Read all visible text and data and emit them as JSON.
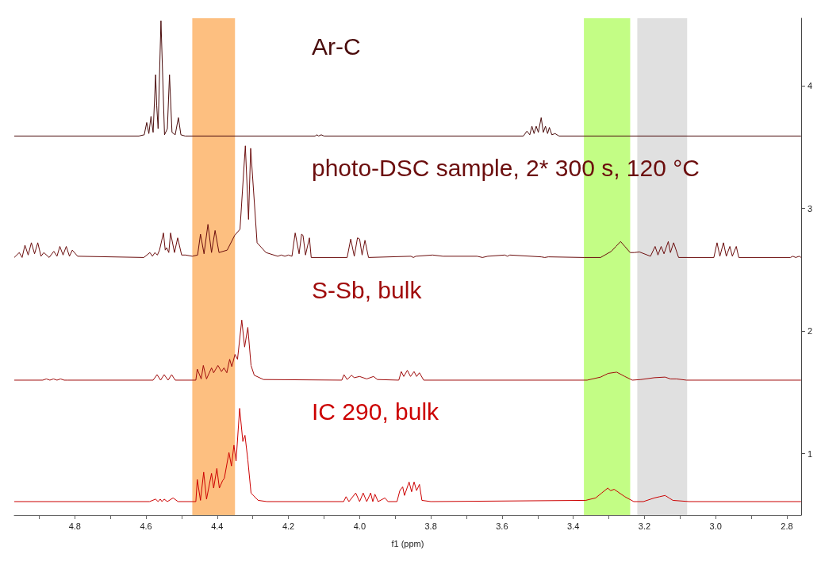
{
  "chart_data": {
    "type": "line",
    "xlabel": "f1 (ppm)",
    "xlim": [
      4.97,
      2.76
    ],
    "ylim": [
      0.5,
      4.55
    ],
    "xticks": [
      {
        "value": 4.9,
        "label": null
      },
      {
        "value": 4.8,
        "label": "4.8"
      },
      {
        "value": 4.7,
        "label": null
      },
      {
        "value": 4.6,
        "label": "4.6"
      },
      {
        "value": 4.5,
        "label": null
      },
      {
        "value": 4.4,
        "label": "4.4"
      },
      {
        "value": 4.3,
        "label": null
      },
      {
        "value": 4.2,
        "label": "4.2"
      },
      {
        "value": 4.1,
        "label": null
      },
      {
        "value": 4,
        "label": "4.0"
      },
      {
        "value": 3.9,
        "label": null
      },
      {
        "value": 3.8,
        "label": "3.8"
      },
      {
        "value": 3.7,
        "label": null
      },
      {
        "value": 3.6,
        "label": "3.6"
      },
      {
        "value": 3.5,
        "label": null
      },
      {
        "value": 3.4,
        "label": "3.4"
      },
      {
        "value": 3.3,
        "label": null
      },
      {
        "value": 3.2,
        "label": "3.2"
      },
      {
        "value": 3.1,
        "label": null
      },
      {
        "value": 3,
        "label": "3.0"
      },
      {
        "value": 2.9,
        "label": null
      },
      {
        "value": 2.8,
        "label": "2.8"
      }
    ],
    "yticks": [
      1,
      2,
      3,
      4
    ],
    "grid": false,
    "legend": false,
    "marker": "none",
    "line_style": "solid",
    "bands": [
      {
        "axis": "x",
        "from": 4.47,
        "to": 4.35,
        "color": "#fdbf80"
      },
      {
        "axis": "x",
        "from": 3.37,
        "to": 3.24,
        "color": "#c3fd85"
      },
      {
        "axis": "x",
        "from": 3.22,
        "to": 3.08,
        "color": "#e0e0e0"
      }
    ],
    "series": [
      {
        "name": "Ar-C",
        "color": "#4a0c0c",
        "x": [
          4.97,
          4.62,
          4.605,
          4.598,
          4.592,
          4.586,
          4.58,
          4.573,
          4.57,
          4.566,
          4.558,
          4.548,
          4.54,
          4.534,
          4.527,
          4.518,
          4.509,
          4.502,
          4.49,
          4.125,
          4.12,
          4.115,
          4.108,
          4.1,
          3.54,
          3.53,
          3.522,
          3.516,
          3.51,
          3.504,
          3.498,
          3.49,
          3.484,
          3.478,
          3.472,
          3.467,
          3.46,
          3.451,
          3.44,
          2.76
        ],
        "values": [
          3.59,
          3.59,
          3.6,
          3.7,
          3.61,
          3.75,
          3.62,
          4.09,
          3.84,
          3.65,
          4.53,
          3.6,
          3.65,
          4.09,
          3.62,
          3.6,
          3.74,
          3.6,
          3.59,
          3.59,
          3.6,
          3.59,
          3.6,
          3.59,
          3.59,
          3.63,
          3.6,
          3.67,
          3.61,
          3.67,
          3.62,
          3.74,
          3.62,
          3.67,
          3.61,
          3.66,
          3.6,
          3.61,
          3.59,
          3.59
        ]
      },
      {
        "name": "photo-DSC sample, 2* 300 s, 120 °C",
        "color": "#6b0d0d",
        "x": [
          4.97,
          4.956,
          4.948,
          4.94,
          4.931,
          4.922,
          4.913,
          4.904,
          4.895,
          4.887,
          4.872,
          4.859,
          4.85,
          4.842,
          4.833,
          4.824,
          4.815,
          4.807,
          4.792,
          4.606,
          4.589,
          4.582,
          4.575,
          4.568,
          4.562,
          4.551,
          4.546,
          4.542,
          4.536,
          4.531,
          4.52,
          4.511,
          4.5,
          4.489,
          4.47,
          4.455,
          4.447,
          4.437,
          4.426,
          4.416,
          4.406,
          4.395,
          4.372,
          4.351,
          4.336,
          4.321,
          4.312,
          4.306,
          4.288,
          4.263,
          4.23,
          4.22,
          4.21,
          4.2,
          4.19,
          4.181,
          4.17,
          4.163,
          4.159,
          4.152,
          4.141,
          4.136,
          4.035,
          4.025,
          4.015,
          4.006,
          4.0,
          3.993,
          3.985,
          3.975,
          3.856,
          3.849,
          3.842,
          3.795,
          3.766,
          3.67,
          3.655,
          3.64,
          3.592,
          3.585,
          3.578,
          3.49,
          3.48,
          3.47,
          3.37,
          3.323,
          3.293,
          3.28,
          3.267,
          3.255,
          3.24,
          3.229,
          3.214,
          3.183,
          3.17,
          3.162,
          3.153,
          3.145,
          3.133,
          3.127,
          3.118,
          3.104,
          3.005,
          2.996,
          2.988,
          2.978,
          2.97,
          2.96,
          2.953,
          2.942,
          2.935,
          2.79,
          2.783,
          2.775,
          2.765,
          2.76
        ],
        "values": [
          2.6,
          2.64,
          2.6,
          2.7,
          2.62,
          2.72,
          2.63,
          2.72,
          2.61,
          2.64,
          2.6,
          2.65,
          2.61,
          2.69,
          2.62,
          2.69,
          2.61,
          2.66,
          2.61,
          2.6,
          2.64,
          2.61,
          2.64,
          2.62,
          2.66,
          2.8,
          2.66,
          2.68,
          2.64,
          2.8,
          2.64,
          2.76,
          2.62,
          2.62,
          2.61,
          2.62,
          2.79,
          2.63,
          2.87,
          2.64,
          2.82,
          2.64,
          2.66,
          2.78,
          2.83,
          3.51,
          2.91,
          3.49,
          2.72,
          2.64,
          2.61,
          2.62,
          2.61,
          2.62,
          2.61,
          2.8,
          2.63,
          2.79,
          2.78,
          2.62,
          2.76,
          2.6,
          2.6,
          2.75,
          2.61,
          2.76,
          2.75,
          2.62,
          2.74,
          2.6,
          2.61,
          2.6,
          2.61,
          2.62,
          2.61,
          2.61,
          2.6,
          2.61,
          2.62,
          2.61,
          2.62,
          2.605,
          2.6,
          2.605,
          2.6,
          2.6,
          2.65,
          2.69,
          2.73,
          2.69,
          2.64,
          2.64,
          2.645,
          2.61,
          2.69,
          2.62,
          2.69,
          2.63,
          2.73,
          2.64,
          2.72,
          2.6,
          2.6,
          2.72,
          2.61,
          2.72,
          2.61,
          2.69,
          2.61,
          2.69,
          2.6,
          2.6,
          2.61,
          2.6,
          2.61,
          2.6
        ]
      },
      {
        "name": "S-Sb, bulk",
        "color": "#a00c0c",
        "x": [
          4.97,
          4.89,
          4.88,
          4.87,
          4.86,
          4.85,
          4.84,
          4.83,
          4.82,
          4.58,
          4.569,
          4.559,
          4.549,
          4.538,
          4.528,
          4.518,
          4.46,
          4.456,
          4.445,
          4.439,
          4.43,
          4.416,
          4.41,
          4.398,
          4.388,
          4.381,
          4.373,
          4.365,
          4.359,
          4.35,
          4.343,
          4.331,
          4.323,
          4.314,
          4.305,
          4.296,
          4.27,
          4.05,
          4.044,
          4.035,
          4.023,
          4.015,
          4.0,
          3.98,
          3.961,
          3.95,
          3.89,
          3.883,
          3.876,
          3.866,
          3.857,
          3.847,
          3.84,
          3.832,
          3.82,
          3.361,
          3.323,
          3.302,
          3.278,
          3.255,
          3.234,
          3.21,
          3.172,
          3.142,
          3.127,
          3.11,
          3.082,
          2.76
        ],
        "values": [
          1.6,
          1.6,
          1.61,
          1.6,
          1.61,
          1.6,
          1.61,
          1.6,
          1.6,
          1.6,
          1.645,
          1.6,
          1.645,
          1.6,
          1.645,
          1.6,
          1.6,
          1.69,
          1.61,
          1.72,
          1.61,
          1.7,
          1.66,
          1.72,
          1.67,
          1.7,
          1.66,
          1.77,
          1.71,
          1.81,
          1.77,
          2.09,
          1.87,
          2.03,
          1.72,
          1.64,
          1.605,
          1.6,
          1.645,
          1.605,
          1.64,
          1.62,
          1.63,
          1.61,
          1.63,
          1.605,
          1.6,
          1.67,
          1.63,
          1.68,
          1.63,
          1.67,
          1.63,
          1.66,
          1.6,
          1.6,
          1.625,
          1.655,
          1.665,
          1.63,
          1.6,
          1.605,
          1.62,
          1.625,
          1.61,
          1.61,
          1.6,
          1.6
        ]
      },
      {
        "name": "IC 290, bulk",
        "color": "#cc0000",
        "x": [
          4.97,
          4.59,
          4.573,
          4.566,
          4.56,
          4.555,
          4.549,
          4.54,
          4.524,
          4.51,
          4.46,
          4.456,
          4.447,
          4.438,
          4.43,
          4.416,
          4.41,
          4.401,
          4.394,
          4.385,
          4.38,
          4.367,
          4.36,
          4.353,
          4.347,
          4.337,
          4.328,
          4.322,
          4.314,
          4.305,
          4.285,
          4.26,
          4.045,
          4.038,
          4.03,
          4.011,
          4.0,
          3.99,
          3.98,
          3.969,
          3.963,
          3.957,
          3.948,
          3.929,
          3.92,
          3.895,
          3.887,
          3.879,
          3.874,
          3.861,
          3.854,
          3.847,
          3.84,
          3.832,
          3.825,
          3.8,
          3.365,
          3.337,
          3.32,
          3.303,
          3.295,
          3.285,
          3.255,
          3.23,
          3.203,
          3.172,
          3.157,
          3.142,
          3.131,
          3.12,
          3.074,
          2.76
        ],
        "values": [
          0.61,
          0.61,
          0.63,
          0.61,
          0.63,
          0.61,
          0.63,
          0.61,
          0.64,
          0.61,
          0.61,
          0.79,
          0.62,
          0.85,
          0.63,
          0.84,
          0.72,
          0.88,
          0.72,
          0.78,
          0.8,
          1.01,
          0.9,
          1.07,
          0.94,
          1.37,
          1.1,
          1.15,
          0.95,
          0.68,
          0.62,
          0.61,
          0.61,
          0.65,
          0.61,
          0.68,
          0.61,
          0.68,
          0.61,
          0.68,
          0.61,
          0.67,
          0.61,
          0.64,
          0.61,
          0.61,
          0.7,
          0.73,
          0.66,
          0.77,
          0.69,
          0.77,
          0.7,
          0.75,
          0.62,
          0.61,
          0.62,
          0.64,
          0.68,
          0.72,
          0.7,
          0.71,
          0.65,
          0.61,
          0.61,
          0.64,
          0.65,
          0.66,
          0.64,
          0.62,
          0.61,
          0.61
        ]
      }
    ]
  }
}
